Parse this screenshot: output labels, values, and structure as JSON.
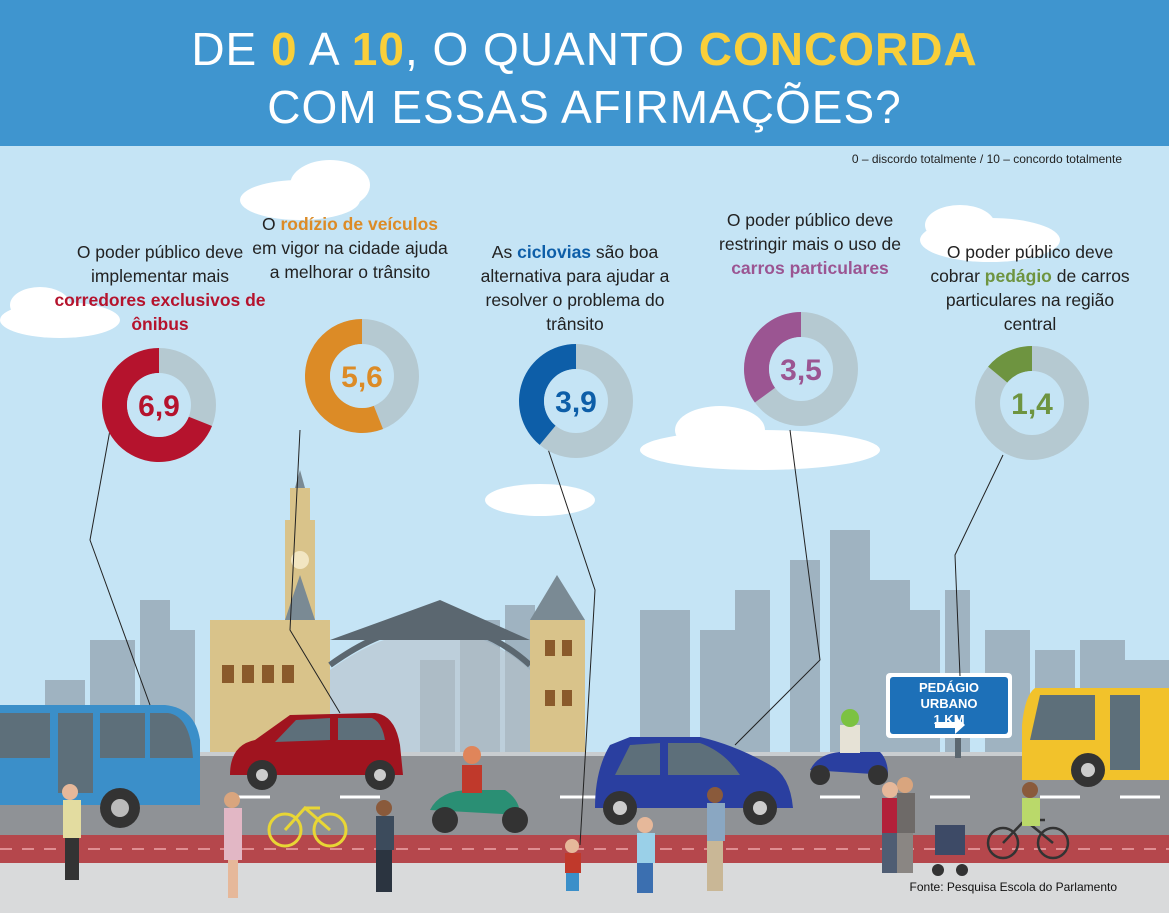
{
  "header": {
    "line1_parts": [
      "DE ",
      "0",
      " A ",
      "10",
      ", O QUANTO ",
      "CONCORDA"
    ],
    "line2": "COM ESSAS AFIRMAÇÕES?"
  },
  "scale_note": "0 – discordo totalmente / 10 – concordo totalmente",
  "source": "Fonte: Pesquisa Escola do Parlamento",
  "road_sign": {
    "line1": "PEDÁGIO URBANO",
    "line2": "1 KM"
  },
  "colors": {
    "header_bg": "#3f95cf",
    "highlight": "#f9cf3a",
    "track": "#b5c9d1",
    "sky": "#c5e4f5"
  },
  "chart_data": {
    "type": "pie",
    "scale": [
      0,
      10
    ],
    "items": [
      {
        "statement_parts": [
          "O poder público deve implementar mais ",
          "corredores exclusivos de ônibus"
        ],
        "value": 6.9,
        "label": "6,9",
        "color": "#b5132d"
      },
      {
        "statement_parts": [
          "O ",
          "rodízio de veículos",
          " em vigor na cidade ajuda a melhorar o trânsito"
        ],
        "value": 5.6,
        "label": "5,6",
        "color": "#dc8b26"
      },
      {
        "statement_parts": [
          "As ",
          "ciclovias",
          " são boa alternativa para ajudar a resolver o problema do trânsito"
        ],
        "value": 3.9,
        "label": "3,9",
        "color": "#0d5ea8"
      },
      {
        "statement_parts": [
          "O poder público deve restringir mais o uso de ",
          "carros particulares"
        ],
        "value": 3.5,
        "label": "3,5",
        "color": "#9b5592"
      },
      {
        "statement_parts": [
          "O poder público deve cobrar ",
          "pedágio",
          " de carros particulares na região central"
        ],
        "value": 1.4,
        "label": "1,4",
        "color": "#6e9440"
      }
    ]
  }
}
